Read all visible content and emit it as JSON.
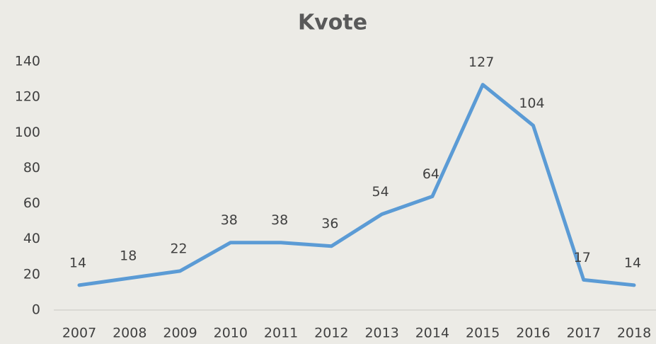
{
  "chart_data": {
    "type": "line",
    "title": "Kvote",
    "categories": [
      "2007",
      "2008",
      "2009",
      "2010",
      "2011",
      "2012",
      "2013",
      "2014",
      "2015",
      "2016",
      "2017",
      "2018"
    ],
    "values": [
      14,
      18,
      22,
      38,
      38,
      36,
      54,
      64,
      127,
      104,
      17,
      14
    ],
    "color": "#5b9bd5",
    "ylim": [
      0,
      140
    ],
    "yticks": [
      0,
      20,
      40,
      60,
      80,
      100,
      120,
      140
    ],
    "grid": false
  }
}
